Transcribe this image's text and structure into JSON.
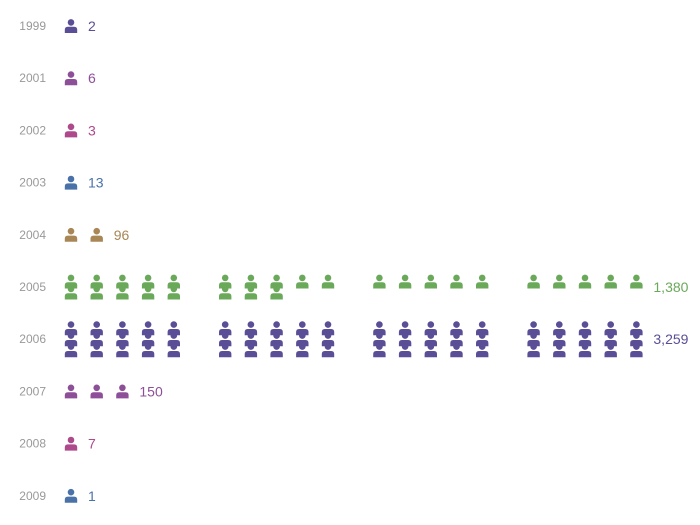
{
  "chart_data": {
    "type": "pictogram",
    "title": "",
    "xlabel": "",
    "ylabel": "",
    "icon": "person-icon",
    "rows": [
      {
        "year": "1999",
        "value": 2,
        "value_label": "2",
        "icons": 1,
        "color": "#5a4e96"
      },
      {
        "year": "2001",
        "value": 6,
        "value_label": "6",
        "icons": 1,
        "color": "#8e4f99"
      },
      {
        "year": "2002",
        "value": 3,
        "value_label": "3",
        "icons": 1,
        "color": "#ae4a8c"
      },
      {
        "year": "2003",
        "value": 13,
        "value_label": "13",
        "icons": 1,
        "color": "#4a72a8"
      },
      {
        "year": "2004",
        "value": 96,
        "value_label": "96",
        "icons": 2,
        "color": "#a88656"
      },
      {
        "year": "2005",
        "value": 1380,
        "value_label": "1,380",
        "icons": 28,
        "color": "#6aa85a"
      },
      {
        "year": "2006",
        "value": 3259,
        "value_label": "3,259",
        "icons": 60,
        "color": "#5a4e96"
      },
      {
        "year": "2007",
        "value": 150,
        "value_label": "150",
        "icons": 3,
        "color": "#8e4f99"
      },
      {
        "year": "2008",
        "value": 7,
        "value_label": "7",
        "icons": 1,
        "color": "#ae4a8c"
      },
      {
        "year": "2009",
        "value": 1,
        "value_label": "1",
        "icons": 1,
        "color": "#4a72a8"
      }
    ]
  }
}
